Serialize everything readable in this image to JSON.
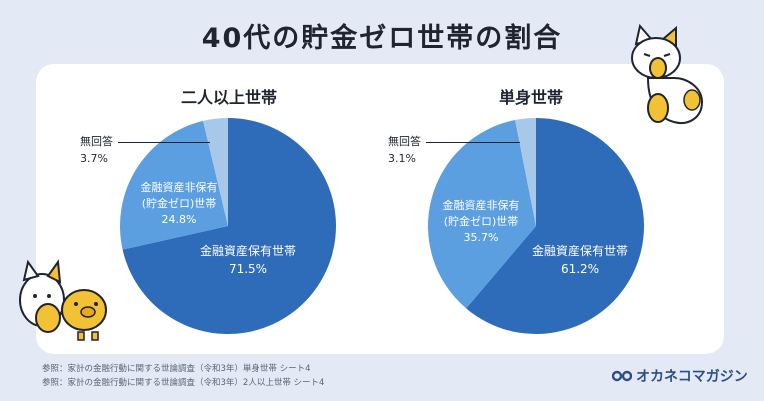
{
  "title": "40代の貯金ゼロ世帯の割合",
  "chart_data": [
    {
      "type": "pie",
      "title": "二人以上世帯",
      "slices": [
        {
          "label": "金融資産保有世帯",
          "value": 71.5,
          "value_label": "71.5%",
          "color": "#2e6bb8"
        },
        {
          "label": "金融資産非保有(貯金ゼロ)世帯",
          "value": 24.8,
          "value_label": "24.8%",
          "color": "#5b9fe0"
        },
        {
          "label": "無回答",
          "value": 3.7,
          "value_label": "3.7%",
          "color": "#a8c8ea"
        }
      ]
    },
    {
      "type": "pie",
      "title": "単身世帯",
      "slices": [
        {
          "label": "金融資産保有世帯",
          "value": 61.2,
          "value_label": "61.2%",
          "color": "#2e6bb8"
        },
        {
          "label": "金融資産非保有(貯金ゼロ)世帯",
          "value": 35.7,
          "value_label": "35.7%",
          "color": "#5b9fe0"
        },
        {
          "label": "無回答",
          "value": 3.1,
          "value_label": "3.1%",
          "color": "#a8c8ea"
        }
      ]
    }
  ],
  "labels": {
    "nonowner_line1": "金融資産非保有",
    "nonowner_line2": "(貯金ゼロ)世帯",
    "owner": "金融資産保有世帯",
    "noanswer": "無回答"
  },
  "sources": [
    "参照：家計の金融行動に関する世論調査（令和3年）単身世帯 シート4",
    "参照：家計の金融行動に関する世論調査（令和3年）2人以上世帯 シート4"
  ],
  "brand": "オカネコマガジン",
  "brand_color": "#2b4f86"
}
